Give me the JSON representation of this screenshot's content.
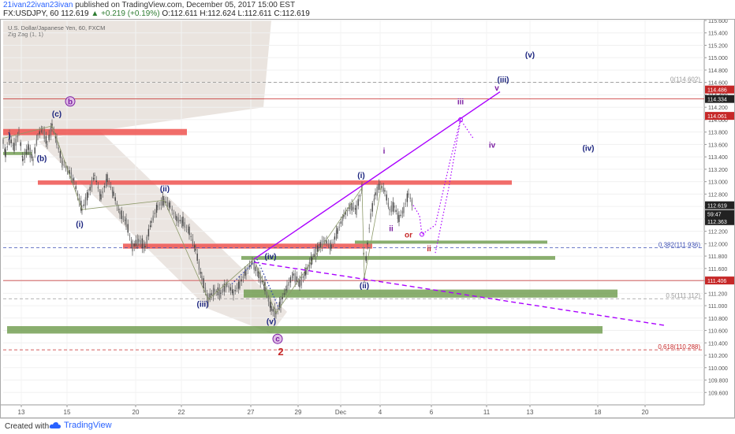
{
  "header": {
    "author": "21ivan22ivan23ivan",
    "published": "published on TradingView.com, December 05, 2017 15:00 EST",
    "symbol": "FX:USDJPY, 60",
    "price": "112.619",
    "change": "+0.219 (+0.19%)",
    "ohlc_o": "O:112.611",
    "ohlc_h": "H:112.624",
    "ohlc_l": "L:112.611",
    "ohlc_c": "C:112.619"
  },
  "legend": {
    "instrument": "U.S. Dollar/Japanese Yen, 60, FXCM",
    "indicator": "Zig Zag (1, 1)"
  },
  "footer": {
    "created_with": "Created with",
    "brand": "TradingView"
  },
  "colors": {
    "red_zone": "#ef5350",
    "green_zone": "#6b9a4a",
    "purple_line": "#aa00ff",
    "navy_label": "#1a237e",
    "purple_label": "#7b1fa2",
    "red_label": "#c62828",
    "candle": "#555555"
  },
  "chart_data": {
    "type": "candlestick",
    "ylim": [
      109.4,
      115.6
    ],
    "y_ticks": [
      "115.600",
      "115.400",
      "115.200",
      "115.000",
      "114.800",
      "114.600",
      "114.400",
      "114.200",
      "114.000",
      "113.800",
      "113.600",
      "113.400",
      "113.200",
      "113.000",
      "112.800",
      "112.600",
      "112.400",
      "112.200",
      "112.000",
      "111.800",
      "111.600",
      "111.400",
      "111.200",
      "111.000",
      "110.800",
      "110.600",
      "110.400",
      "110.200",
      "110.000",
      "109.800",
      "109.600"
    ],
    "x_ticks": [
      "13",
      "15",
      "20",
      "22",
      "27",
      "29",
      "Dec",
      "4",
      "6",
      "11",
      "13",
      "18",
      "20"
    ],
    "price_path": [
      {
        "t": 0,
        "p": 113.65
      },
      {
        "t": 3,
        "p": 113.45
      },
      {
        "t": 8,
        "p": 113.7
      },
      {
        "t": 14,
        "p": 113.55
      },
      {
        "t": 20,
        "p": 113.8
      },
      {
        "t": 25,
        "p": 113.35
      },
      {
        "t": 32,
        "p": 113.55
      },
      {
        "t": 38,
        "p": 113.35
      },
      {
        "t": 44,
        "p": 113.75
      },
      {
        "t": 50,
        "p": 113.85
      },
      {
        "t": 56,
        "p": 113.6
      },
      {
        "t": 62,
        "p": 113.9
      },
      {
        "t": 68,
        "p": 113.65
      },
      {
        "t": 75,
        "p": 113.3
      },
      {
        "t": 82,
        "p": 113.2
      },
      {
        "t": 90,
        "p": 113.0
      },
      {
        "t": 100,
        "p": 112.55
      },
      {
        "t": 108,
        "p": 112.8
      },
      {
        "t": 116,
        "p": 113.1
      },
      {
        "t": 124,
        "p": 112.75
      },
      {
        "t": 132,
        "p": 113.05
      },
      {
        "t": 140,
        "p": 112.8
      },
      {
        "t": 148,
        "p": 112.5
      },
      {
        "t": 156,
        "p": 112.35
      },
      {
        "t": 164,
        "p": 111.95
      },
      {
        "t": 172,
        "p": 112.05
      },
      {
        "t": 180,
        "p": 111.95
      },
      {
        "t": 188,
        "p": 112.35
      },
      {
        "t": 196,
        "p": 112.6
      },
      {
        "t": 204,
        "p": 112.7
      },
      {
        "t": 212,
        "p": 112.6
      },
      {
        "t": 220,
        "p": 112.4
      },
      {
        "t": 228,
        "p": 112.35
      },
      {
        "t": 236,
        "p": 112.2
      },
      {
        "t": 244,
        "p": 111.9
      },
      {
        "t": 252,
        "p": 111.45
      },
      {
        "t": 260,
        "p": 111.1
      },
      {
        "t": 268,
        "p": 111.25
      },
      {
        "t": 276,
        "p": 111.2
      },
      {
        "t": 284,
        "p": 111.35
      },
      {
        "t": 292,
        "p": 111.2
      },
      {
        "t": 300,
        "p": 111.35
      },
      {
        "t": 308,
        "p": 111.55
      },
      {
        "t": 316,
        "p": 111.7
      },
      {
        "t": 324,
        "p": 111.5
      },
      {
        "t": 332,
        "p": 111.3
      },
      {
        "t": 340,
        "p": 110.95
      },
      {
        "t": 346,
        "p": 110.88
      },
      {
        "t": 352,
        "p": 111.05
      },
      {
        "t": 360,
        "p": 111.3
      },
      {
        "t": 368,
        "p": 111.5
      },
      {
        "t": 376,
        "p": 111.35
      },
      {
        "t": 384,
        "p": 111.55
      },
      {
        "t": 392,
        "p": 111.75
      },
      {
        "t": 400,
        "p": 111.95
      },
      {
        "t": 408,
        "p": 112.05
      },
      {
        "t": 416,
        "p": 111.95
      },
      {
        "t": 424,
        "p": 112.2
      },
      {
        "t": 432,
        "p": 112.45
      },
      {
        "t": 440,
        "p": 112.6
      },
      {
        "t": 448,
        "p": 112.55
      },
      {
        "t": 455,
        "p": 112.9
      },
      {
        "t": 458,
        "p": 111.45
      },
      {
        "t": 462,
        "p": 112.0
      },
      {
        "t": 466,
        "p": 112.45
      },
      {
        "t": 472,
        "p": 112.8
      },
      {
        "t": 478,
        "p": 112.95
      },
      {
        "t": 484,
        "p": 112.85
      },
      {
        "t": 490,
        "p": 112.55
      },
      {
        "t": 496,
        "p": 112.6
      },
      {
        "t": 502,
        "p": 112.4
      },
      {
        "t": 508,
        "p": 112.55
      },
      {
        "t": 514,
        "p": 112.8
      },
      {
        "t": 520,
        "p": 112.62
      }
    ],
    "horizontal_levels": [
      {
        "price": 114.602,
        "label": "0(114.602)",
        "color": "#999999",
        "style": "dashed"
      },
      {
        "price": 114.334,
        "label": "",
        "color": "#c62828",
        "style": "solid"
      },
      {
        "price": 111.936,
        "label": "0.382(111.936)",
        "color": "#3f51b5",
        "style": "dashed"
      },
      {
        "price": 111.406,
        "label": "",
        "color": "#c62828",
        "style": "solid"
      },
      {
        "price": 111.112,
        "label": "0.5(111.112)",
        "color": "#999999",
        "style": "dashed"
      },
      {
        "price": 110.288,
        "label": "0.618(110.288)",
        "color": "#c62828",
        "style": "dashed"
      }
    ],
    "price_badges": [
      {
        "price": 114.486,
        "text": "114.486",
        "bg": "#c62828"
      },
      {
        "price": 114.334,
        "text": "114.334",
        "bg": "#222222"
      },
      {
        "price": 114.061,
        "text": "114.061",
        "bg": "#c62828"
      },
      {
        "price": 112.619,
        "text": "112.619",
        "bg": "#222222"
      },
      {
        "price": 112.48,
        "text": "59:47",
        "bg": "#222222"
      },
      {
        "price": 112.363,
        "text": "112.363",
        "bg": "#222222"
      },
      {
        "price": 111.406,
        "text": "111.406",
        "bg": "#c62828"
      }
    ],
    "zones": [
      {
        "type": "red",
        "t0": 0,
        "t1": 233,
        "p0": 113.85,
        "p1": 113.75
      },
      {
        "type": "red",
        "t0": 44,
        "t1": 645,
        "p0": 113.02,
        "p1": 112.95
      },
      {
        "type": "red",
        "t0": 152,
        "t1": 468,
        "p0": 112.0,
        "p1": 111.92
      },
      {
        "type": "green",
        "t0": 0,
        "t1": 36,
        "p0": 113.48,
        "p1": 113.43
      },
      {
        "type": "green",
        "t0": 446,
        "t1": 690,
        "p0": 112.05,
        "p1": 112.0
      },
      {
        "type": "green",
        "t0": 302,
        "t1": 700,
        "p0": 111.8,
        "p1": 111.74
      },
      {
        "type": "green",
        "t0": 305,
        "t1": 779,
        "p0": 111.26,
        "p1": 111.13
      },
      {
        "type": "green",
        "t0": 5,
        "t1": 760,
        "p0": 110.67,
        "p1": 110.55
      }
    ],
    "wave_labels": [
      {
        "text": "(v)",
        "t": 668,
        "p": 115.0,
        "color": "navy"
      },
      {
        "text": "(iii)",
        "t": 634,
        "p": 114.6,
        "color": "navy"
      },
      {
        "text": "v",
        "t": 626,
        "p": 114.47,
        "color": "purple"
      },
      {
        "text": "iii",
        "t": 580,
        "p": 114.25,
        "color": "purple"
      },
      {
        "text": "iv",
        "t": 620,
        "p": 113.55,
        "color": "purple"
      },
      {
        "text": "(iv)",
        "t": 742,
        "p": 113.5,
        "color": "navy"
      },
      {
        "text": "i",
        "t": 483,
        "p": 113.45,
        "color": "purple"
      },
      {
        "text": "(i)",
        "t": 454,
        "p": 113.06,
        "color": "navy"
      },
      {
        "text": "ii",
        "t": 492,
        "p": 112.2,
        "color": "purple"
      },
      {
        "text": "or",
        "t": 514,
        "p": 112.1,
        "color": "red"
      },
      {
        "text": "ii",
        "t": 540,
        "p": 111.88,
        "color": "red"
      },
      {
        "text": "(ii)",
        "t": 458,
        "p": 111.28,
        "color": "navy"
      },
      {
        "text": "b",
        "t": 85,
        "p": 114.25,
        "color": "purple",
        "circled": true
      },
      {
        "text": "(c)",
        "t": 68,
        "p": 114.05,
        "color": "navy"
      },
      {
        "text": "(b)",
        "t": 49,
        "p": 113.33,
        "color": "navy"
      },
      {
        "text": "(ii)",
        "t": 205,
        "p": 112.84,
        "color": "navy"
      },
      {
        "text": "(i)",
        "t": 97,
        "p": 112.27,
        "color": "navy"
      },
      {
        "text": "(iv)",
        "t": 339,
        "p": 111.75,
        "color": "navy"
      },
      {
        "text": "(iii)",
        "t": 253,
        "p": 110.98,
        "color": "navy"
      },
      {
        "text": "(v)",
        "t": 340,
        "p": 110.7,
        "color": "navy"
      },
      {
        "text": "c",
        "t": 348,
        "p": 110.42,
        "color": "purple",
        "circled": true
      },
      {
        "text": "2",
        "t": 352,
        "p": 110.2,
        "color": "red"
      },
      {
        "text": ")",
        "t": 8,
        "p": 113.7,
        "color": "navy"
      }
    ],
    "trendlines": [
      {
        "from": {
          "t": 318,
          "p": 111.75
        },
        "to": {
          "t": 630,
          "p": 114.45
        },
        "color": "#aa00ff",
        "style": "solid"
      },
      {
        "from": {
          "t": 318,
          "p": 111.7
        },
        "to": {
          "t": 840,
          "p": 110.68
        },
        "color": "#aa00ff",
        "style": "dashed"
      },
      {
        "from": {
          "t": 290,
          "p": 111.35
        },
        "to": {
          "t": 322,
          "p": 111.75
        },
        "color": "#3949ab",
        "style": "dotted"
      },
      {
        "from": {
          "t": 322,
          "p": 111.75
        },
        "to": {
          "t": 350,
          "p": 110.95
        },
        "color": "#3949ab",
        "style": "dotted"
      }
    ],
    "projection": [
      {
        "t": 520,
        "p": 112.62
      },
      {
        "t": 528,
        "p": 112.45
      },
      {
        "t": 531,
        "p": 112.15
      },
      {
        "t": 548,
        "p": 112.3
      },
      {
        "t": 567,
        "p": 113.35
      },
      {
        "t": 580,
        "p": 114.0
      },
      {
        "t": 596,
        "p": 113.7
      }
    ],
    "projection2": [
      {
        "t": 548,
        "p": 111.85
      },
      {
        "t": 565,
        "p": 112.9
      },
      {
        "t": 580,
        "p": 114.0
      }
    ]
  }
}
